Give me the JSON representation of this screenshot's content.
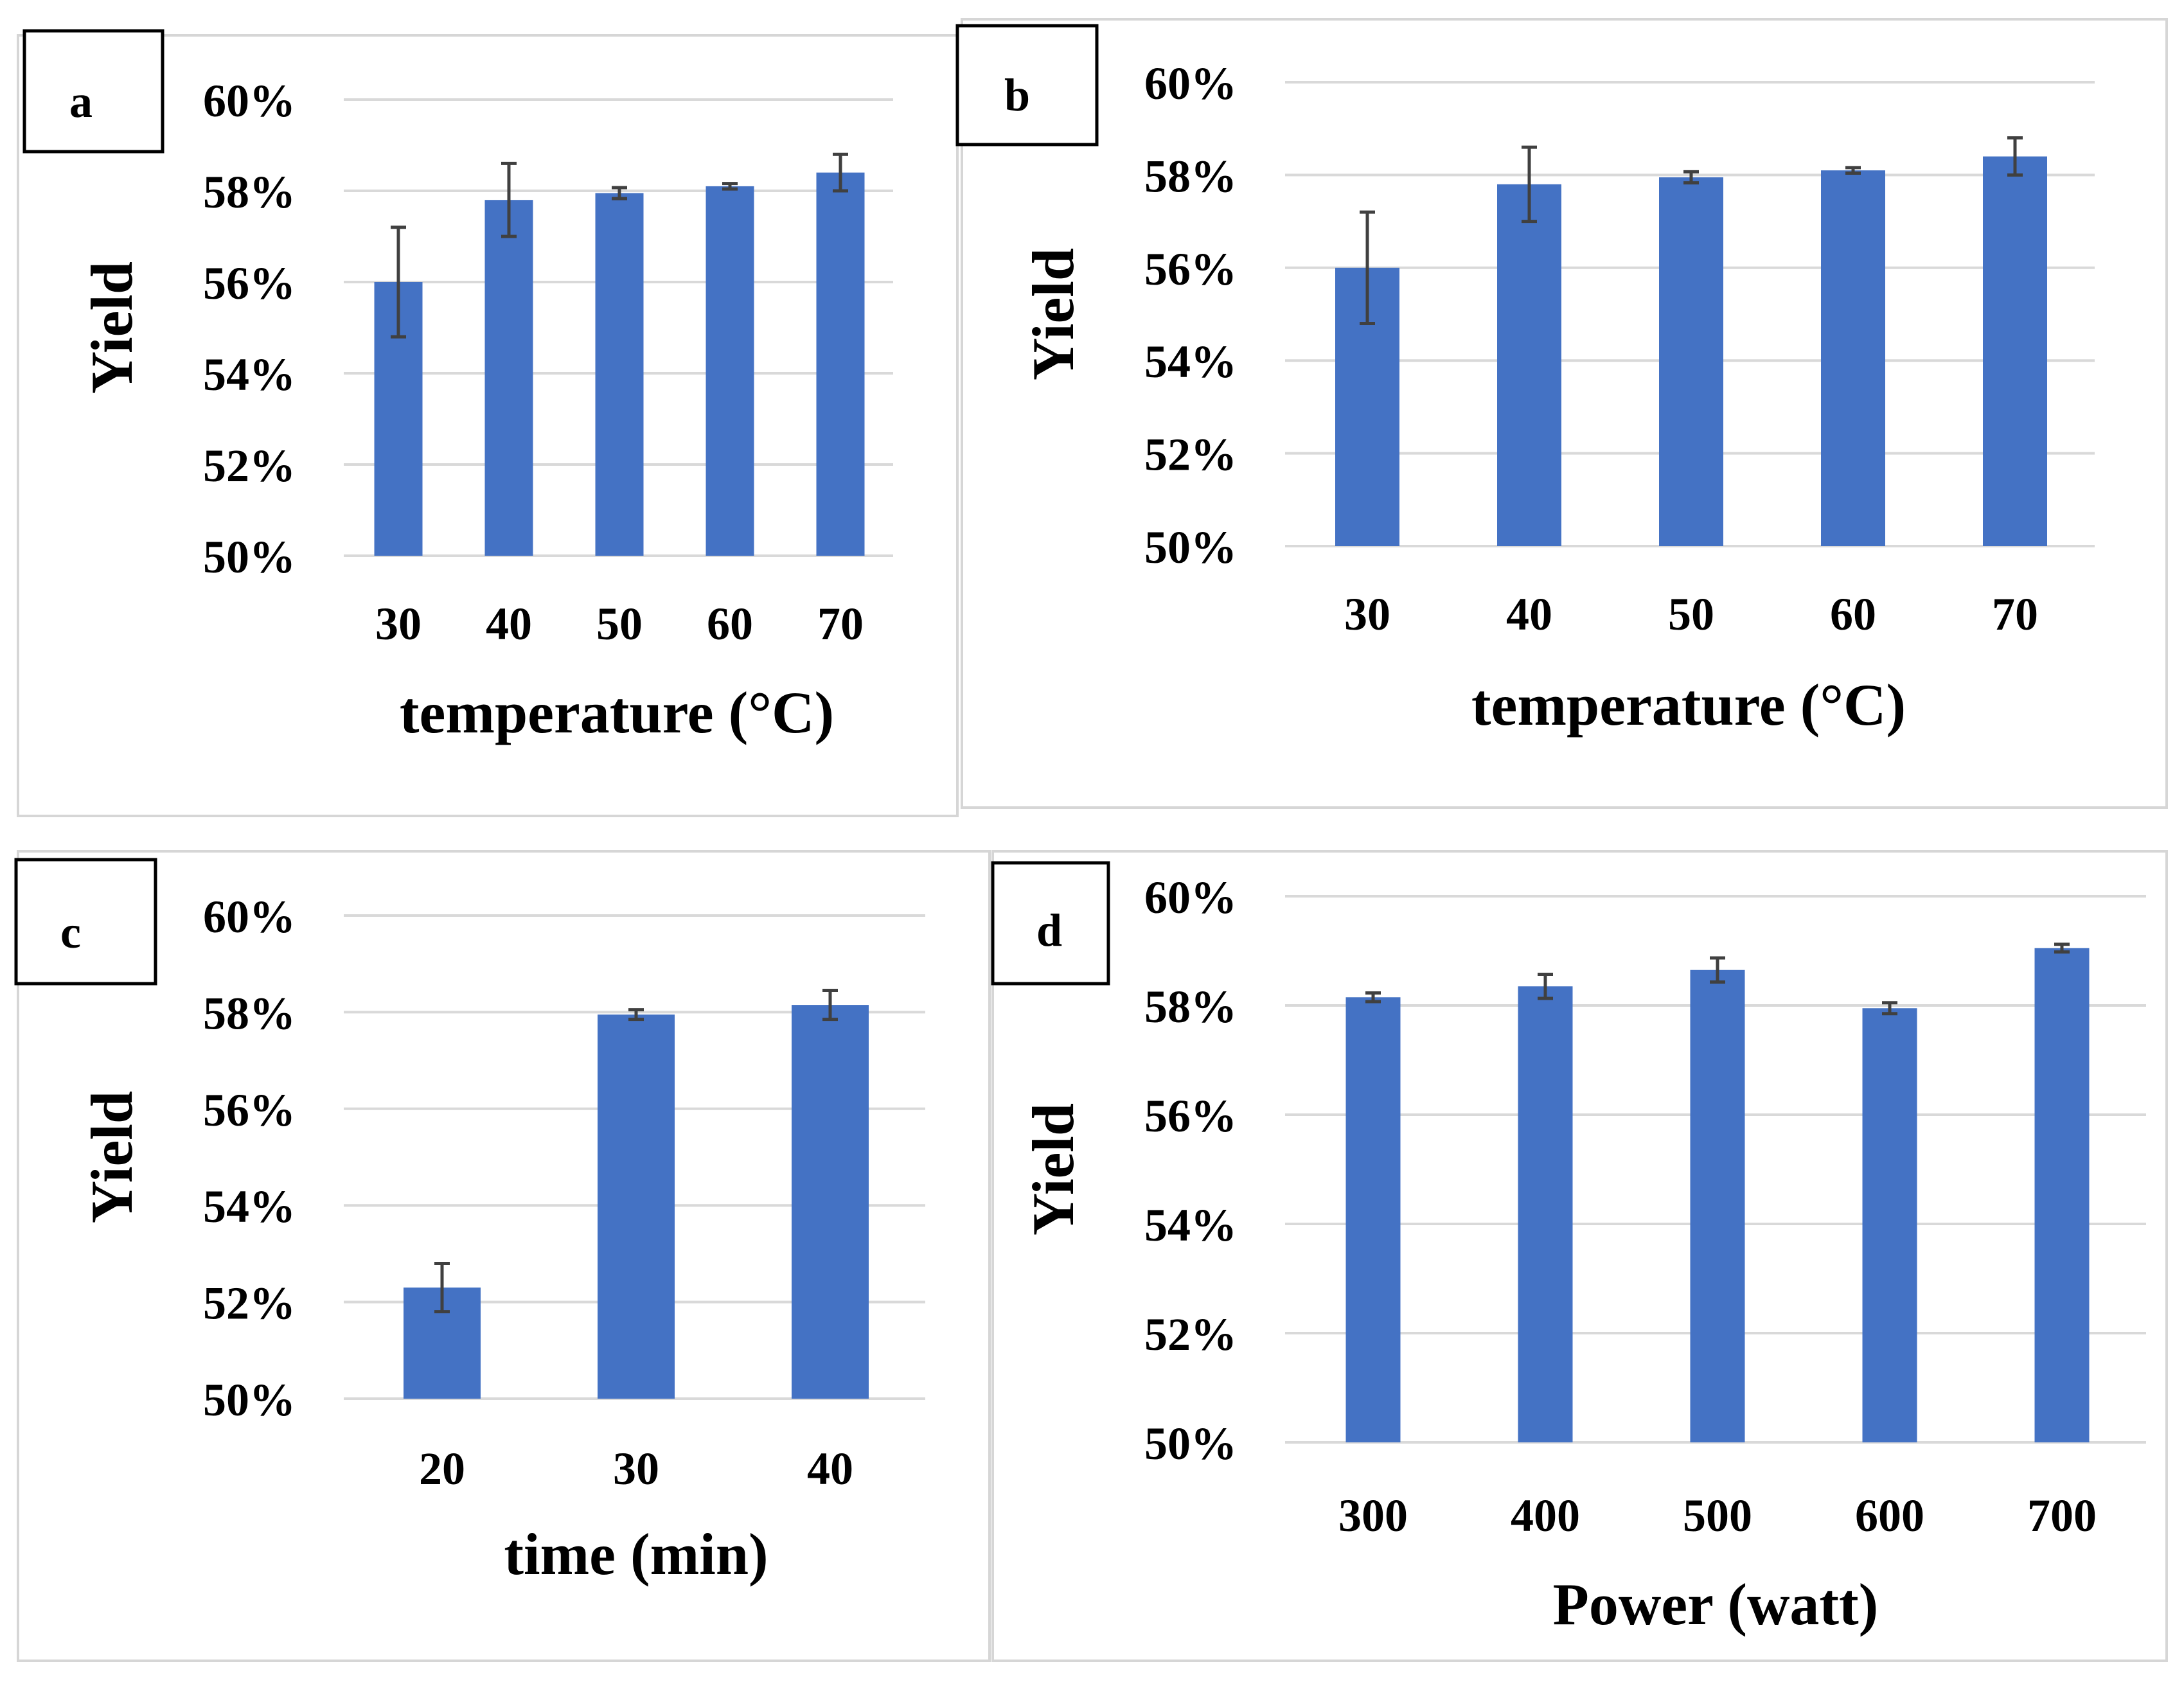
{
  "figure": {
    "panels": [
      {
        "id": "a",
        "label": "a"
      },
      {
        "id": "b",
        "label": "b"
      },
      {
        "id": "c",
        "label": "c"
      },
      {
        "id": "d",
        "label": "d"
      }
    ]
  },
  "colors": {
    "bar": "#4472c4",
    "grid": "#d9d9d9",
    "error_bar": "#404040",
    "frame": "#d6d6d6"
  },
  "chart_data": [
    {
      "panel": "a",
      "type": "bar",
      "title": "",
      "categories": [
        "30",
        "40",
        "50",
        "60",
        "70"
      ],
      "values": [
        56.0,
        57.8,
        57.95,
        58.1,
        58.4
      ],
      "errors": [
        1.2,
        0.8,
        0.12,
        0.06,
        0.4
      ],
      "xlabel": "temperature (°C)",
      "ylabel": "Yield",
      "ylim": [
        50,
        60
      ],
      "yticks": [
        "50%",
        "52%",
        "54%",
        "56%",
        "58%",
        "60%"
      ],
      "grid": true
    },
    {
      "panel": "b",
      "type": "bar",
      "title": "",
      "categories": [
        "30",
        "40",
        "50",
        "60",
        "70"
      ],
      "values": [
        56.0,
        57.8,
        57.95,
        58.1,
        58.4
      ],
      "errors": [
        1.2,
        0.8,
        0.12,
        0.06,
        0.4
      ],
      "xlabel": "temperature (°C)",
      "ylabel": "Yield",
      "ylim": [
        50,
        60
      ],
      "yticks": [
        "50%",
        "52%",
        "54%",
        "56%",
        "58%",
        "60%"
      ],
      "grid": true
    },
    {
      "panel": "c",
      "type": "bar",
      "title": "",
      "categories": [
        "20",
        "30",
        "40"
      ],
      "values": [
        52.3,
        57.95,
        58.15
      ],
      "errors": [
        0.5,
        0.1,
        0.3
      ],
      "xlabel": "time (min)",
      "ylabel": "Yield",
      "ylim": [
        50,
        60
      ],
      "yticks": [
        "50%",
        "52%",
        "54%",
        "56%",
        "58%",
        "60%"
      ],
      "grid": true
    },
    {
      "panel": "d",
      "type": "bar",
      "title": "",
      "categories": [
        "300",
        "400",
        "500",
        "600",
        "700"
      ],
      "values": [
        58.15,
        58.35,
        58.65,
        57.95,
        59.05
      ],
      "errors": [
        0.08,
        0.22,
        0.22,
        0.1,
        0.07
      ],
      "xlabel": "Power (watt)",
      "ylabel": "Yield",
      "ylim": [
        50,
        60
      ],
      "yticks": [
        "50%",
        "52%",
        "54%",
        "56%",
        "58%",
        "60%"
      ],
      "grid": true
    }
  ]
}
